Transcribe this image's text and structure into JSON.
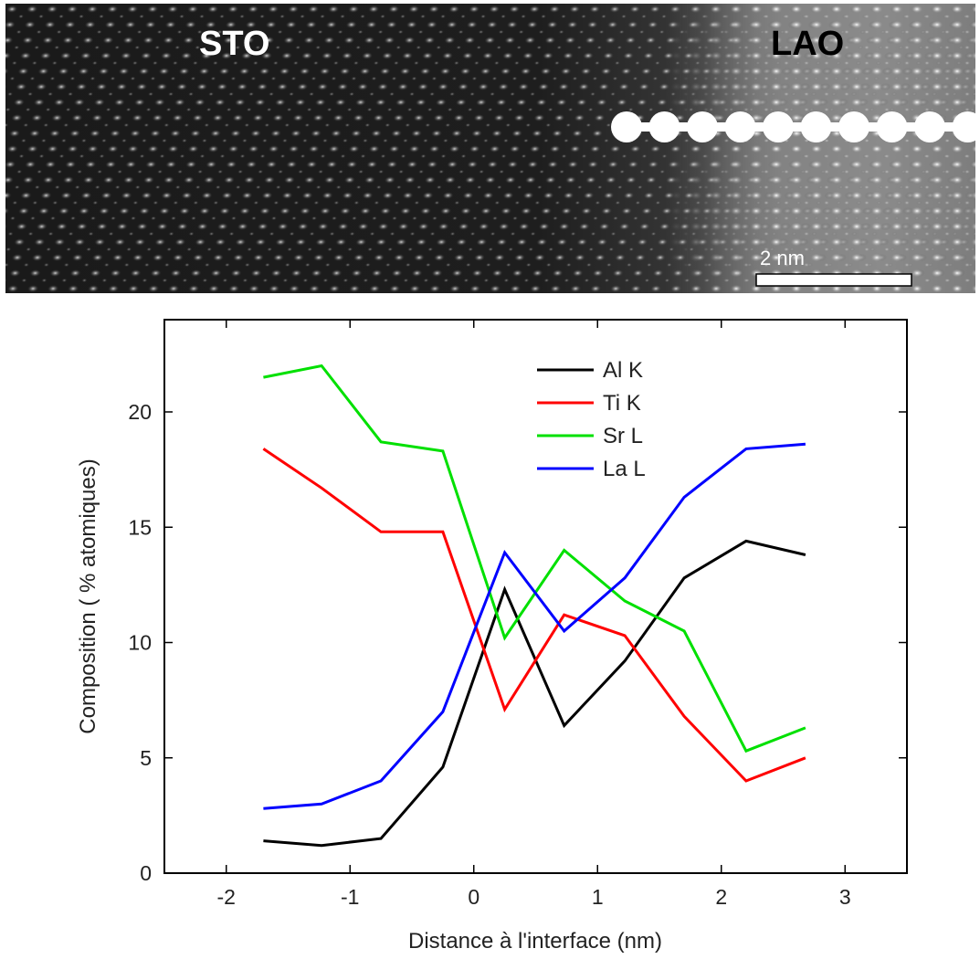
{
  "image": {
    "left_label": "STO",
    "right_label": "LAO",
    "scale_label": "2 nm"
  },
  "chart_data": {
    "type": "line",
    "xlabel": "Distance à l'interface (nm)",
    "ylabel": "Composition ( % atomiques)",
    "xlim": [
      -2.5,
      3.5
    ],
    "ylim": [
      0,
      24
    ],
    "xticks": [
      -2,
      -1,
      0,
      1,
      2,
      3
    ],
    "yticks": [
      0,
      5,
      10,
      15,
      20
    ],
    "legend_position": "top-center",
    "x": [
      -1.7,
      -1.23,
      -0.75,
      -0.25,
      0.25,
      0.73,
      1.22,
      1.7,
      2.2,
      2.68
    ],
    "series": [
      {
        "name": "Al K",
        "color": "#000000",
        "values": [
          1.4,
          1.2,
          1.5,
          4.6,
          12.3,
          6.4,
          9.2,
          12.8,
          14.4,
          13.8
        ]
      },
      {
        "name": "Ti K",
        "color": "#ff0000",
        "values": [
          18.4,
          16.7,
          14.8,
          14.8,
          7.1,
          11.2,
          10.3,
          6.8,
          4.0,
          5.0
        ]
      },
      {
        "name": "Sr L",
        "color": "#00e000",
        "values": [
          21.5,
          22.0,
          18.7,
          18.3,
          10.2,
          14.0,
          11.8,
          10.5,
          5.3,
          6.3
        ]
      },
      {
        "name": "La L",
        "color": "#0000ff",
        "values": [
          2.8,
          3.0,
          4.0,
          7.0,
          13.9,
          10.5,
          12.8,
          16.3,
          18.4,
          18.6
        ]
      }
    ]
  }
}
